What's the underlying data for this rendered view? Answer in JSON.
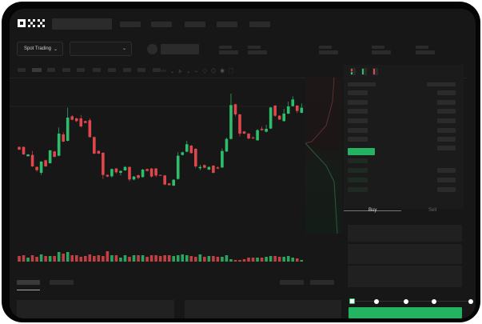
{
  "header": {
    "logo": "OKX"
  },
  "market_selector": {
    "label": "Spot Trading",
    "pair_value": ""
  },
  "trade_panel": {
    "tabs": [
      "Buy",
      "Sell"
    ],
    "active_tab": "Buy",
    "slider_percent": 0
  },
  "colors": {
    "up": "#2ebd6b",
    "down": "#e0474c",
    "accent": "#24b360",
    "background": "#171717"
  },
  "icons": [
    "chevron-down-icon",
    "order-book-both-icon",
    "order-book-buy-icon",
    "order-book-sell-icon",
    "indicator-icon",
    "drawing-icon",
    "settings-icon",
    "fullscreen-icon"
  ],
  "chart_data": {
    "type": "candlestick",
    "ohlc": [
      [
        185,
        187,
        173,
        175
      ],
      [
        185,
        187,
        155,
        157
      ],
      [
        150,
        158,
        149,
        157
      ],
      [
        155,
        170,
        110,
        112
      ],
      [
        110,
        112,
        92,
        98
      ],
      [
        88,
        132,
        80,
        130
      ],
      [
        135,
        137,
        110,
        112
      ],
      [
        124,
        174,
        122,
        172
      ],
      [
        168,
        170,
        146,
        148
      ],
      [
        152,
        258,
        150,
        235
      ],
      [
        232,
        240,
        203,
        205
      ],
      [
        208,
        332,
        206,
        295
      ],
      [
        300,
        304,
        285,
        287
      ],
      [
        292,
        295,
        278,
        282
      ],
      [
        292,
        305,
        258,
        262
      ],
      [
        282,
        283,
        274,
        275
      ],
      [
        285,
        292,
        220,
        222
      ],
      [
        222,
        224,
        158,
        160
      ],
      [
        170,
        172,
        158,
        160
      ],
      [
        163,
        165,
        65,
        80
      ],
      [
        80,
        82,
        72,
        74
      ],
      [
        75,
        104,
        70,
        102
      ],
      [
        104,
        106,
        85,
        90
      ],
      [
        88,
        97,
        78,
        95
      ],
      [
        97,
        113,
        95,
        110
      ],
      [
        110,
        112,
        56,
        63
      ],
      [
        63,
        76,
        60,
        74
      ],
      [
        79,
        81,
        64,
        69
      ],
      [
        72,
        103,
        70,
        100
      ],
      [
        102,
        104,
        93,
        95
      ],
      [
        104,
        106,
        70,
        74
      ],
      [
        104,
        106,
        72,
        78
      ],
      [
        80,
        81,
        77,
        78
      ],
      [
        78,
        80,
        42,
        44
      ],
      [
        48,
        50,
        40,
        42
      ],
      [
        40,
        64,
        38,
        62
      ],
      [
        65,
        165,
        62,
        152
      ],
      [
        155,
        167,
        153,
        165
      ],
      [
        167,
        208,
        165,
        195
      ],
      [
        190,
        192,
        160,
        162
      ],
      [
        178,
        180,
        105,
        112
      ],
      [
        105,
        118,
        98,
        110
      ],
      [
        117,
        119,
        105,
        107
      ],
      [
        100,
        112,
        98,
        110
      ],
      [
        115,
        116,
        86,
        88
      ],
      [
        108,
        112,
        102,
        104
      ],
      [
        108,
        180,
        106,
        170
      ],
      [
        168,
        220,
        166,
        215
      ],
      [
        215,
        385,
        213,
        342
      ],
      [
        345,
        347,
        300,
        307
      ],
      [
        307,
        309,
        225,
        235
      ],
      [
        243,
        245,
        233,
        235
      ],
      [
        235,
        237,
        213,
        217
      ],
      [
        220,
        225,
        215,
        217
      ],
      [
        210,
        252,
        208,
        248
      ],
      [
        253,
        262,
        246,
        248
      ],
      [
        242,
        268,
        240,
        253
      ],
      [
        254,
        335,
        252,
        333
      ],
      [
        340,
        342,
        298,
        302
      ],
      [
        302,
        304,
        286,
        288
      ],
      [
        282,
        328,
        280,
        310
      ],
      [
        310,
        355,
        308,
        337
      ],
      [
        338,
        375,
        336,
        363
      ],
      [
        340,
        342,
        312,
        320
      ],
      [
        313,
        348,
        311,
        332
      ]
    ],
    "volume": [
      7,
      8,
      5,
      8,
      6,
      9,
      7,
      7,
      7,
      12,
      10,
      12,
      8,
      8,
      6,
      7,
      9,
      7,
      8,
      7,
      13,
      8,
      8,
      5,
      8,
      6,
      8,
      8,
      8,
      6,
      8,
      8,
      7,
      8,
      8,
      7,
      8,
      9,
      8,
      7,
      6,
      9,
      6,
      7,
      7,
      6,
      6,
      8,
      3,
      2,
      2,
      3,
      5,
      5,
      5,
      5,
      6,
      7,
      7,
      6,
      6,
      7,
      5,
      4,
      2
    ],
    "xlabel": "",
    "ylabel": ""
  }
}
